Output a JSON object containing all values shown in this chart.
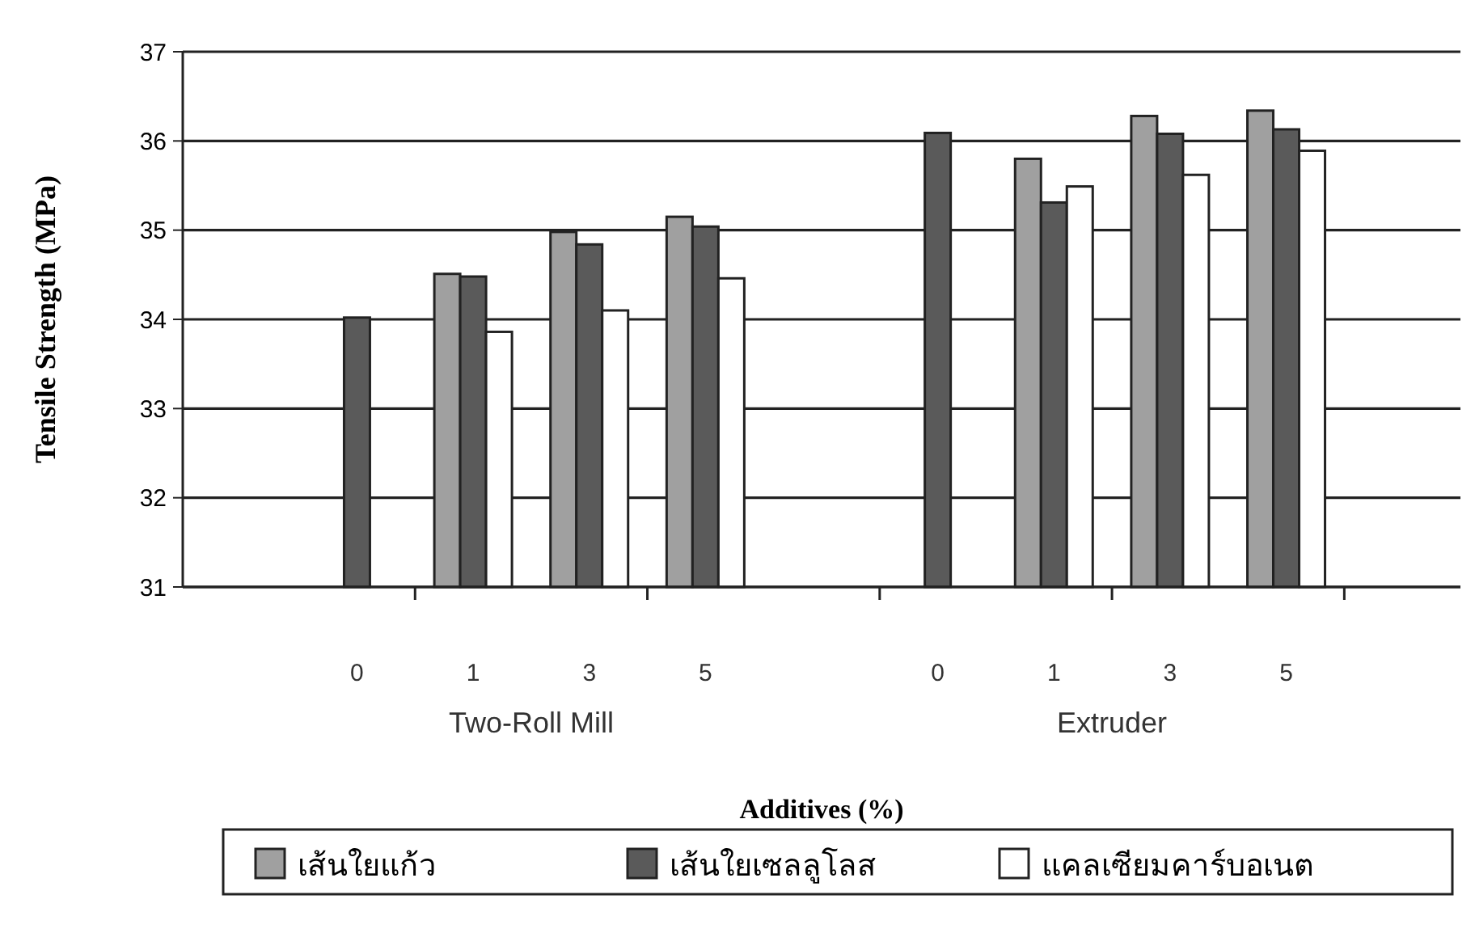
{
  "chart_data": {
    "type": "bar",
    "xlabel": "Additives (%)",
    "ylabel": "Tensile Strength (MPa)",
    "categories": [
      null,
      "0",
      "1",
      "3",
      "5",
      null,
      "0",
      "1",
      "3",
      "5",
      null
    ],
    "series": [
      {
        "name": "เส้นใยแก้ว",
        "color": "#a0a0a0",
        "values": [
          null,
          null,
          34.51,
          34.98,
          35.15,
          null,
          null,
          35.8,
          36.28,
          36.34,
          null
        ]
      },
      {
        "name": "เส้นใยเซลลูโลส",
        "color": "#5a5a5a",
        "values": [
          null,
          34.02,
          34.48,
          34.84,
          35.04,
          null,
          36.09,
          35.31,
          36.08,
          36.13,
          null
        ]
      },
      {
        "name": "แคลเซียมคาร์บอเนต",
        "color": "#ffffff",
        "values": [
          null,
          null,
          33.86,
          34.1,
          34.46,
          null,
          null,
          35.49,
          35.62,
          35.89,
          null
        ]
      }
    ],
    "annotations": [
      "Two-Roll Mill",
      "Extruder"
    ],
    "ylim": [
      31,
      37
    ],
    "yticks": [
      31,
      32,
      33,
      34,
      35,
      36,
      37
    ],
    "grid": "y",
    "legend": "bottom"
  }
}
